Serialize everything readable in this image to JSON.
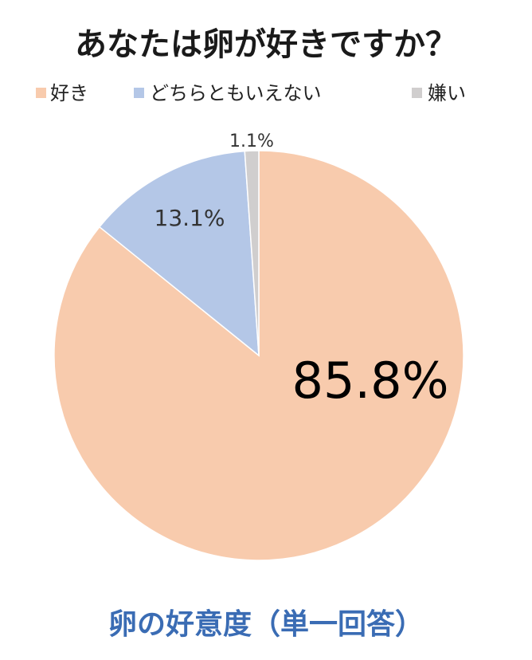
{
  "chart_data": {
    "type": "pie",
    "title": "あなたは卵が好きですか？",
    "categories": [
      "好き",
      "どちらともいえない",
      "嫌い"
    ],
    "values": [
      85.8,
      13.1,
      1.1
    ],
    "value_labels": [
      "85.8%",
      "13.1%",
      "1.1%"
    ],
    "colors": [
      "#f8cbad",
      "#b4c7e7",
      "#d0cece"
    ],
    "legend": "top",
    "caption": "卵の好意度（単一回答）"
  }
}
